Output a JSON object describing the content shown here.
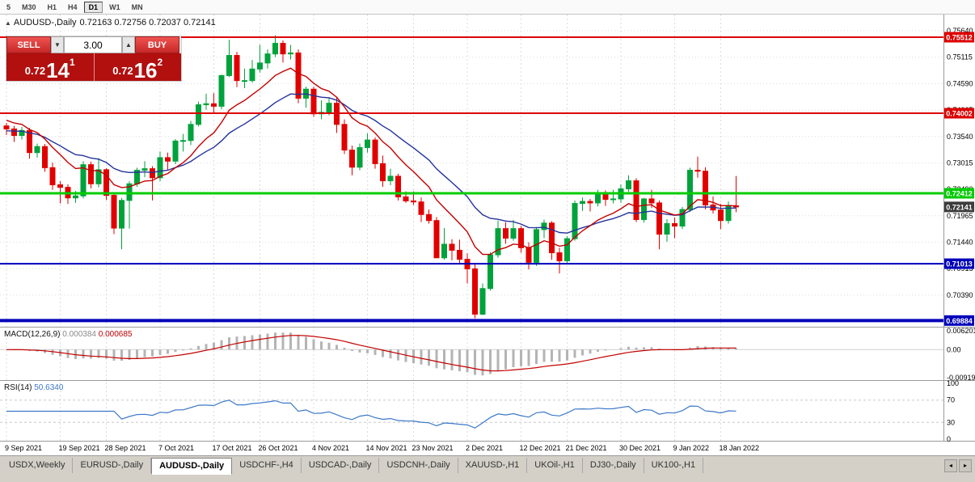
{
  "toolbar": {
    "timeframes": [
      {
        "label": "5",
        "active": false
      },
      {
        "label": "M30",
        "active": false
      },
      {
        "label": "H1",
        "active": false
      },
      {
        "label": "H4",
        "active": false
      },
      {
        "label": "D1",
        "active": true
      },
      {
        "label": "W1",
        "active": false
      },
      {
        "label": "MN",
        "active": false
      }
    ]
  },
  "header": {
    "symbol_icon": "▲",
    "title": "AUDUSD-,Daily",
    "ohlc": "0.72163 0.72756 0.72037 0.72141"
  },
  "trade_panel": {
    "sell_label": "SELL",
    "buy_label": "BUY",
    "volume": "3.00",
    "dropdown_icon": "▼",
    "up_icon": "▲",
    "sell": {
      "prefix": "0.72",
      "big": "14",
      "sup": "1"
    },
    "buy": {
      "prefix": "0.72",
      "big": "16",
      "sup": "2"
    }
  },
  "indicators": {
    "macd": {
      "name": "MACD(12,26,9)",
      "value1": "0.000384",
      "value2": "0.000685",
      "params": {
        "fast": 12,
        "slow": 26,
        "signal": 9
      },
      "axis": [
        {
          "v": 0.006201,
          "label": "0.006201"
        },
        {
          "v": 0,
          "label": "0.00"
        },
        {
          "v": -0.00919,
          "label": "-0.00919"
        }
      ]
    },
    "rsi": {
      "name": "RSI(14)",
      "value": "50.6340",
      "period": 14,
      "levels": [
        70,
        30
      ],
      "axis": [
        {
          "v": 100,
          "label": "100"
        },
        {
          "v": 70,
          "label": "70"
        },
        {
          "v": 30,
          "label": "30"
        },
        {
          "v": 0,
          "label": "0"
        }
      ]
    }
  },
  "chart": {
    "symbol": "AUDUSD-",
    "timeframe": "Daily",
    "type": "candlestick",
    "price_ticks": [
      "0.75640",
      "0.75115",
      "0.74590",
      "0.74065",
      "0.73540",
      "0.73015",
      "0.72490",
      "0.71965",
      "0.71440",
      "0.70915",
      "0.70390"
    ],
    "levels": [
      {
        "price": 0.75512,
        "label": "0.75512",
        "color": "#dd0000",
        "width": 2,
        "line": true
      },
      {
        "price": 0.74002,
        "label": "0.74002",
        "color": "#dd0000",
        "width": 2,
        "line": true
      },
      {
        "price": 0.72412,
        "label": "0.72412",
        "color": "#00cc00",
        "width": 3,
        "line": true
      },
      {
        "price": 0.72141,
        "label": "0.72141",
        "color": "#3c3c3c",
        "width": 1,
        "line": false
      },
      {
        "price": 0.71013,
        "label": "0.71013",
        "color": "#0000bb",
        "width": 2,
        "line": true
      },
      {
        "price": 0.69884,
        "label": "0.69884",
        "color": "#0000bb",
        "width": 4,
        "line": true
      }
    ],
    "date_ticks": [
      {
        "i": 0,
        "label": "9 Sep 2021"
      },
      {
        "i": 7,
        "label": "19 Sep 2021"
      },
      {
        "i": 13,
        "label": "28 Sep 2021"
      },
      {
        "i": 20,
        "label": "7 Oct 2021"
      },
      {
        "i": 27,
        "label": "17 Oct 2021"
      },
      {
        "i": 33,
        "label": "26 Oct 2021"
      },
      {
        "i": 40,
        "label": "4 Nov 2021"
      },
      {
        "i": 47,
        "label": "14 Nov 2021"
      },
      {
        "i": 53,
        "label": "23 Nov 2021"
      },
      {
        "i": 60,
        "label": "2 Dec 2021"
      },
      {
        "i": 67,
        "label": "12 Dec 2021"
      },
      {
        "i": 73,
        "label": "21 Dec 2021"
      },
      {
        "i": 80,
        "label": "30 Dec 2021"
      },
      {
        "i": 87,
        "label": "9 Jan 2022"
      },
      {
        "i": 93,
        "label": "18 Jan 2022"
      }
    ],
    "ma": {
      "fast_period": 10,
      "slow_period": 21
    },
    "candles": [
      [
        0.7375,
        0.7381,
        0.7357,
        0.7369
      ],
      [
        0.7369,
        0.7375,
        0.7343,
        0.7356
      ],
      [
        0.7356,
        0.7373,
        0.7348,
        0.7366
      ],
      [
        0.7366,
        0.7371,
        0.731,
        0.7322
      ],
      [
        0.7322,
        0.734,
        0.7312,
        0.7334
      ],
      [
        0.7334,
        0.7339,
        0.7284,
        0.7292
      ],
      [
        0.7292,
        0.7302,
        0.7248,
        0.7258
      ],
      [
        0.7258,
        0.7265,
        0.7221,
        0.7253
      ],
      [
        0.7253,
        0.7259,
        0.722,
        0.7232
      ],
      [
        0.7232,
        0.7246,
        0.7222,
        0.7236
      ],
      [
        0.7236,
        0.7305,
        0.7231,
        0.7298
      ],
      [
        0.7298,
        0.7304,
        0.7251,
        0.726
      ],
      [
        0.726,
        0.7311,
        0.7253,
        0.7288
      ],
      [
        0.7288,
        0.7291,
        0.7228,
        0.7237
      ],
      [
        0.7237,
        0.7241,
        0.716,
        0.7172
      ],
      [
        0.7172,
        0.7232,
        0.713,
        0.7227
      ],
      [
        0.7227,
        0.7265,
        0.7171,
        0.726
      ],
      [
        0.726,
        0.7292,
        0.7254,
        0.7287
      ],
      [
        0.7287,
        0.7305,
        0.7273,
        0.729
      ],
      [
        0.729,
        0.7295,
        0.7227,
        0.7272
      ],
      [
        0.7272,
        0.7324,
        0.7265,
        0.7312
      ],
      [
        0.7312,
        0.7322,
        0.7288,
        0.7305
      ],
      [
        0.7305,
        0.7349,
        0.7299,
        0.7345
      ],
      [
        0.7345,
        0.7359,
        0.7324,
        0.7346
      ],
      [
        0.7346,
        0.7385,
        0.7337,
        0.7378
      ],
      [
        0.7378,
        0.7423,
        0.7374,
        0.7417
      ],
      [
        0.7417,
        0.7439,
        0.7407,
        0.7419
      ],
      [
        0.7419,
        0.744,
        0.74,
        0.7414
      ],
      [
        0.7414,
        0.7477,
        0.7408,
        0.7475
      ],
      [
        0.7475,
        0.7546,
        0.7472,
        0.7515
      ],
      [
        0.7515,
        0.7522,
        0.7452,
        0.7465
      ],
      [
        0.7465,
        0.7489,
        0.745,
        0.7465
      ],
      [
        0.7465,
        0.7506,
        0.7461,
        0.7488
      ],
      [
        0.7488,
        0.7536,
        0.7481,
        0.75
      ],
      [
        0.75,
        0.7527,
        0.7489,
        0.7518
      ],
      [
        0.7518,
        0.7555,
        0.7512,
        0.7539
      ],
      [
        0.7539,
        0.7545,
        0.7501,
        0.7518
      ],
      [
        0.7518,
        0.7536,
        0.7507,
        0.752
      ],
      [
        0.752,
        0.7527,
        0.742,
        0.743
      ],
      [
        0.743,
        0.7453,
        0.7411,
        0.7448
      ],
      [
        0.7448,
        0.7453,
        0.7393,
        0.7399
      ],
      [
        0.7399,
        0.7426,
        0.7388,
        0.7402
      ],
      [
        0.7402,
        0.7432,
        0.7396,
        0.742
      ],
      [
        0.742,
        0.7432,
        0.7361,
        0.7378
      ],
      [
        0.7378,
        0.7388,
        0.7319,
        0.7327
      ],
      [
        0.7327,
        0.7336,
        0.7277,
        0.7293
      ],
      [
        0.7293,
        0.734,
        0.7287,
        0.7332
      ],
      [
        0.7332,
        0.736,
        0.7322,
        0.7347
      ],
      [
        0.7347,
        0.7352,
        0.729,
        0.73
      ],
      [
        0.73,
        0.7316,
        0.7254,
        0.7266
      ],
      [
        0.7266,
        0.729,
        0.7257,
        0.7275
      ],
      [
        0.7275,
        0.728,
        0.7227,
        0.7234
      ],
      [
        0.7234,
        0.7245,
        0.7222,
        0.7226
      ],
      [
        0.7226,
        0.7245,
        0.7218,
        0.7224
      ],
      [
        0.7224,
        0.7233,
        0.7184,
        0.7199
      ],
      [
        0.7199,
        0.7209,
        0.7181,
        0.7187
      ],
      [
        0.7187,
        0.7194,
        0.7113,
        0.7113
      ],
      [
        0.7113,
        0.7172,
        0.7109,
        0.714
      ],
      [
        0.714,
        0.715,
        0.7108,
        0.7128
      ],
      [
        0.7128,
        0.7149,
        0.71,
        0.711
      ],
      [
        0.711,
        0.7122,
        0.7062,
        0.7091
      ],
      [
        0.7091,
        0.7102,
        0.6993,
        0.7001
      ],
      [
        0.7001,
        0.7062,
        0.6999,
        0.7052
      ],
      [
        0.7052,
        0.7124,
        0.7048,
        0.7119
      ],
      [
        0.7119,
        0.7187,
        0.7113,
        0.7171
      ],
      [
        0.7171,
        0.7184,
        0.7141,
        0.7152
      ],
      [
        0.7152,
        0.7188,
        0.7147,
        0.7171
      ],
      [
        0.7171,
        0.7176,
        0.7123,
        0.7133
      ],
      [
        0.7133,
        0.7144,
        0.709,
        0.7104
      ],
      [
        0.7104,
        0.7174,
        0.7097,
        0.7169
      ],
      [
        0.7169,
        0.7189,
        0.7152,
        0.7182
      ],
      [
        0.7182,
        0.7186,
        0.7109,
        0.7123
      ],
      [
        0.7123,
        0.7133,
        0.7082,
        0.7107
      ],
      [
        0.7107,
        0.7156,
        0.7103,
        0.7151
      ],
      [
        0.7151,
        0.7227,
        0.7147,
        0.7221
      ],
      [
        0.7221,
        0.7233,
        0.7206,
        0.7225
      ],
      [
        0.7225,
        0.723,
        0.7205,
        0.7222
      ],
      [
        0.7222,
        0.7248,
        0.7215,
        0.7238
      ],
      [
        0.7238,
        0.7247,
        0.7216,
        0.7229
      ],
      [
        0.7229,
        0.7248,
        0.7221,
        0.723
      ],
      [
        0.723,
        0.7259,
        0.7222,
        0.725
      ],
      [
        0.725,
        0.7277,
        0.7244,
        0.7266
      ],
      [
        0.7266,
        0.7271,
        0.7184,
        0.7189
      ],
      [
        0.7189,
        0.7232,
        0.7183,
        0.723
      ],
      [
        0.723,
        0.7248,
        0.7212,
        0.7222
      ],
      [
        0.7222,
        0.7227,
        0.713,
        0.716
      ],
      [
        0.716,
        0.719,
        0.7145,
        0.7181
      ],
      [
        0.7181,
        0.7193,
        0.7152,
        0.7176
      ],
      [
        0.7176,
        0.7214,
        0.717,
        0.7209
      ],
      [
        0.7209,
        0.7292,
        0.7204,
        0.7287
      ],
      [
        0.7287,
        0.7314,
        0.7272,
        0.7285
      ],
      [
        0.7285,
        0.7293,
        0.7209,
        0.7218
      ],
      [
        0.7218,
        0.7235,
        0.7201,
        0.7208
      ],
      [
        0.7208,
        0.722,
        0.717,
        0.7187
      ],
      [
        0.7187,
        0.7225,
        0.7181,
        0.7217
      ],
      [
        0.72163,
        0.72756,
        0.72037,
        0.72141
      ]
    ]
  },
  "colors": {
    "bull": "#00a23c",
    "bear": "#e10000",
    "ma_fast": "#c40000",
    "ma_slow": "#24339b",
    "macd_hist": "#b4b4b4",
    "macd_signal": "#c40000",
    "rsi": "#3c78c8",
    "grid": "#dcdcdc",
    "separator": "#9a9a9a",
    "axis_text": "#000000",
    "trade_panel_bg": "#b20f0f",
    "sell_buy_button": "#d32f2f"
  },
  "tabs": {
    "scroll_left": "◂",
    "scroll_right": "▸",
    "items": [
      {
        "label": "USDX,Weekly",
        "active": false
      },
      {
        "label": "EURUSD-,Daily",
        "active": false
      },
      {
        "label": "AUDUSD-,Daily",
        "active": true
      },
      {
        "label": "USDCHF-,H4",
        "active": false
      },
      {
        "label": "USDCAD-,Daily",
        "active": false
      },
      {
        "label": "USDCNH-,Daily",
        "active": false
      },
      {
        "label": "XAUUSD-,H1",
        "active": false
      },
      {
        "label": "UKOil-,H1",
        "active": false
      },
      {
        "label": "DJ30-,Daily",
        "active": false
      },
      {
        "label": "UK100-,H1",
        "active": false
      }
    ]
  }
}
